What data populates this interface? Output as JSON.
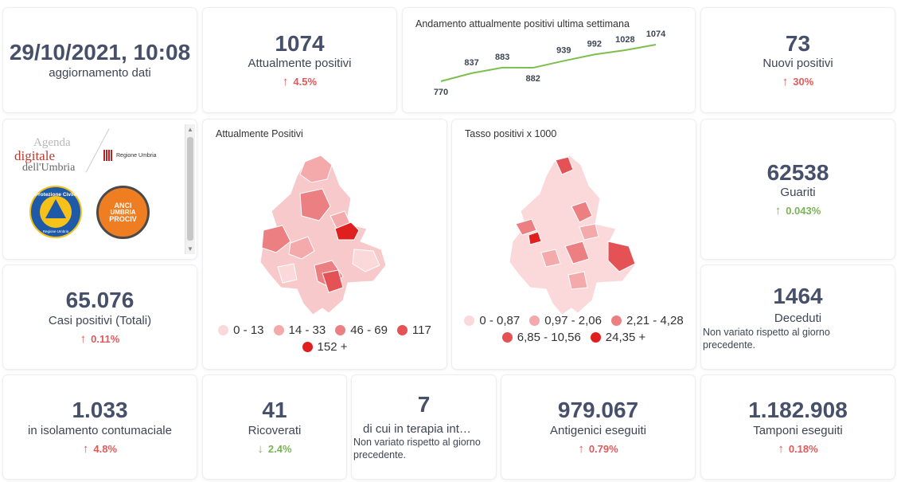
{
  "update": {
    "value": "29/10/2021, 10:08",
    "label": "aggiornamento dati"
  },
  "attualmente_positivi": {
    "value": "1074",
    "label": "Attualmente positivi",
    "delta": "4.5%"
  },
  "trend": {
    "title": "Andamento attualmente positivi ultima settimana",
    "chart_data": {
      "type": "line",
      "values": [
        770,
        837,
        883,
        882,
        939,
        992,
        1028,
        1074
      ],
      "color": "#7cbf4f"
    },
    "point_labels": [
      "770",
      "837",
      "883",
      "882",
      "939",
      "992",
      "1028",
      "1074"
    ]
  },
  "nuovi_positivi": {
    "value": "73",
    "label": "Nuovi positivi",
    "delta": "30%"
  },
  "logos": {
    "agenda_line1": "Agenda",
    "agenda_line2": "digitale",
    "agenda_line3": "dell'Umbria",
    "regione": "Regione Umbria",
    "protezione": "Protezione Civile",
    "protezione_sub": "Regione Umbria",
    "anci_line1": "ANCI",
    "anci_line2": "UMBRIA",
    "anci_line3": "PROCIV"
  },
  "map1": {
    "title": "Attualmente Positivi",
    "legend": [
      {
        "label": "0 - 13",
        "color": "#fbd9da"
      },
      {
        "label": "14 - 33",
        "color": "#f4a9ab"
      },
      {
        "label": "46 - 69",
        "color": "#ec7f82"
      },
      {
        "label": "117",
        "color": "#e45256"
      },
      {
        "label": "152 +",
        "color": "#e01f1f"
      }
    ]
  },
  "map2": {
    "title": "Tasso positivi x 1000",
    "legend": [
      {
        "label": "0 - 0,87",
        "color": "#fbd9da"
      },
      {
        "label": "0,97 - 2,06",
        "color": "#f4a9ab"
      },
      {
        "label": "2,21 - 4,28",
        "color": "#ec7f82"
      },
      {
        "label": "6,85 - 10,56",
        "color": "#e45256"
      },
      {
        "label": "24,35 +",
        "color": "#e01f1f"
      }
    ]
  },
  "guariti": {
    "value": "62538",
    "label": "Guariti",
    "delta": "0.043%"
  },
  "casi_totali": {
    "value": "65.076",
    "label": "Casi positivi (Totali)",
    "delta": "0.11%"
  },
  "deceduti": {
    "value": "1464",
    "label": "Deceduti",
    "note": "Non variato rispetto al giorno precedente."
  },
  "isolamento": {
    "value": "1.033",
    "label": "in isolamento contumaciale",
    "delta": "4.8%"
  },
  "ricoverati": {
    "value": "41",
    "label": "Ricoverati",
    "delta": "2.4%"
  },
  "terapia": {
    "value": "7",
    "label": "di cui in terapia int…",
    "note": "Non variato rispetto al giorno precedente."
  },
  "antigenici": {
    "value": "979.067",
    "label": "Antigenici eseguiti",
    "delta": "0.79%"
  },
  "tamponi": {
    "value": "1.182.908",
    "label": "Tamponi eseguiti",
    "delta": "0.18%"
  },
  "icons": {
    "up": "arrow-up-icon",
    "down": "arrow-down-icon"
  }
}
